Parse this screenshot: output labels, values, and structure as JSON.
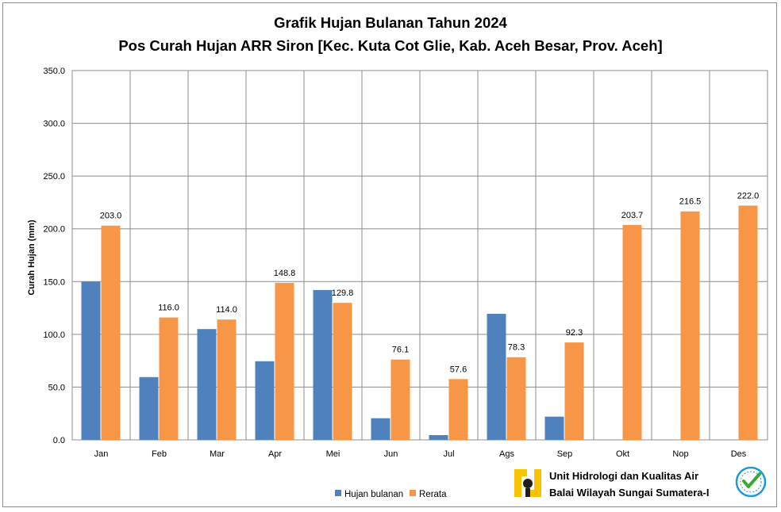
{
  "chart_data": {
    "type": "bar",
    "title": "Grafik Hujan Bulanan Tahun 2024",
    "subtitle": "Pos Curah Hujan ARR Siron [Kec. Kuta Cot Glie, Kab. Aceh Besar, Prov. Aceh]",
    "ylabel": "Curah Hujan (mm)",
    "ylim": [
      0,
      350
    ],
    "yticks": [
      "0.0",
      "50.0",
      "100.0",
      "150.0",
      "200.0",
      "250.0",
      "300.0",
      "350.0"
    ],
    "grid": true,
    "legend_position": "bottom",
    "categories": [
      "Jan",
      "Feb",
      "Mar",
      "Apr",
      "Mei",
      "Jun",
      "Jul",
      "Ags",
      "Sep",
      "Okt",
      "Nop",
      "Des"
    ],
    "series": [
      {
        "name": "Hujan bulanan",
        "color": "#4f81bd",
        "values": [
          150,
          59.5,
          105,
          74.5,
          142,
          20.5,
          4.5,
          119.5,
          22,
          null,
          null,
          null
        ]
      },
      {
        "name": "Rerata",
        "color": "#f79646",
        "values": [
          203.0,
          116.0,
          114.0,
          148.8,
          129.8,
          76.1,
          57.6,
          78.3,
          92.3,
          203.7,
          216.5,
          222.0
        ],
        "labels": [
          "203.0",
          "116.0",
          "114.0",
          "148.8",
          "129.8",
          "76.1",
          "57.6",
          "78.3",
          "92.3",
          "203.7",
          "216.5",
          "222.0"
        ]
      }
    ]
  },
  "footer": {
    "line1": "Unit Hidrologi dan Kualitas Air",
    "line2": "Balai Wilayah Sungai Sumatera-I",
    "logo_icon": "pu-logo-icon",
    "badge_icon": "certified-badge-icon",
    "accent": "#f5c400",
    "badge_color": "#1a9ad6"
  }
}
